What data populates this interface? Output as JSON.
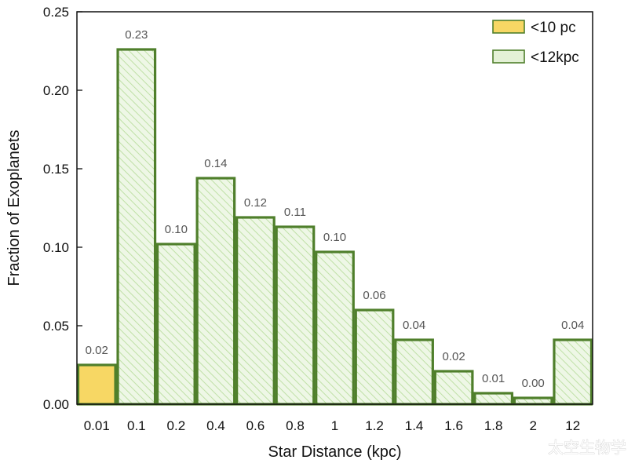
{
  "chart_data": {
    "type": "bar",
    "title": "",
    "xlabel": "Star Distance (kpc)",
    "ylabel": "Fraction of Exoplanets",
    "ylim": [
      0,
      0.25
    ],
    "y_ticks": [
      "0.00",
      "0.05",
      "0.10",
      "0.15",
      "0.20",
      "0.25"
    ],
    "categories": [
      "0.01",
      "0.1",
      "0.2",
      "0.4",
      "0.6",
      "0.8",
      "1",
      "1.2",
      "1.4",
      "1.6",
      "1.8",
      "2",
      "12"
    ],
    "series": [
      {
        "name": "<10 pc",
        "color": "#f7d764",
        "fill": "solid",
        "values": [
          0.025,
          null,
          null,
          null,
          null,
          null,
          null,
          null,
          null,
          null,
          null,
          null,
          null
        ],
        "labels": [
          "0.02",
          null,
          null,
          null,
          null,
          null,
          null,
          null,
          null,
          null,
          null,
          null,
          null
        ]
      },
      {
        "name": "<12kpc",
        "color": "#e4f1d6",
        "fill": "hatched",
        "values": [
          null,
          0.226,
          0.102,
          0.144,
          0.119,
          0.113,
          0.097,
          0.06,
          0.041,
          0.021,
          0.007,
          0.004,
          0.041
        ],
        "labels": [
          null,
          "0.23",
          "0.10",
          "0.14",
          "0.12",
          "0.11",
          "0.10",
          "0.06",
          "0.04",
          "0.02",
          "0.01",
          "0.00",
          "0.04"
        ]
      }
    ],
    "bar_outline_color": "#4f7f2b",
    "legend_position": "top-right",
    "grid": false
  },
  "watermark": "太空生物学"
}
